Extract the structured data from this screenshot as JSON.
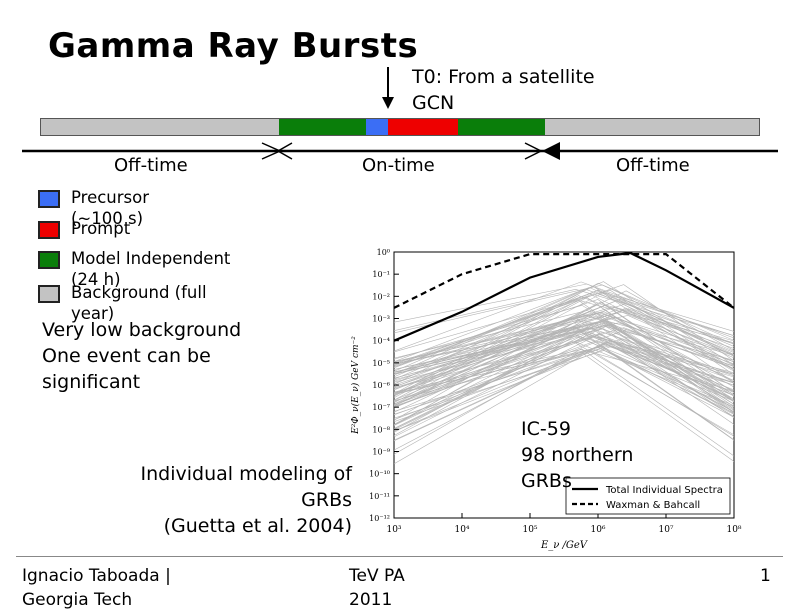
{
  "slide": {
    "title": "Gamma Ray Bursts",
    "t0_note_line1": "T0: From a satellite",
    "t0_note_line2": "GCN"
  },
  "timeline": {
    "segments": [
      {
        "name": "background-left",
        "color": "#c3c3c3"
      },
      {
        "name": "model-independent-left",
        "color": "#0a7e0a"
      },
      {
        "name": "precursor",
        "color": "#3b6ef5"
      },
      {
        "name": "prompt",
        "color": "#ee0000"
      },
      {
        "name": "model-independent-right",
        "color": "#0a7e0a"
      },
      {
        "name": "background-right",
        "color": "#c3c3c3"
      }
    ],
    "off_time_left": "Off-time",
    "on_time": "On-time",
    "off_time_right": "Off-time"
  },
  "legend": [
    {
      "color": "#3b6ef5",
      "line1": "Precursor",
      "line2": "(~100 s)"
    },
    {
      "color": "#ee0000",
      "line1": "Prompt",
      "line2": ""
    },
    {
      "color": "#0a7e0a",
      "line1": "Model Independent",
      "line2": "(24 h)"
    },
    {
      "color": "#c3c3c3",
      "line1": "Background (full",
      "line2": "year)"
    }
  ],
  "body_text": {
    "line1": "Very low background",
    "line2": "One event can be",
    "line3": "significant"
  },
  "caption": {
    "line1": "Individual modeling of",
    "line2": "GRBs",
    "line3": "(Guetta et al. 2004)"
  },
  "ic_note": {
    "line1": "IC-59",
    "line2": "98 northern",
    "line3": "GRBs"
  },
  "footer": {
    "author_line1": "Ignacio Taboada |",
    "author_line2": "Georgia Tech",
    "event_line1": "TeV PA",
    "event_line2": "2011",
    "page": "1"
  },
  "chart_data": {
    "type": "line",
    "xscale": "log",
    "yscale": "log",
    "xlim": [
      1000,
      100000000
    ],
    "ylim": [
      1e-12,
      1
    ],
    "xlabel": "E_ν /GeV",
    "ylabel": "E²Φ_ν(E_ν) GeV cm⁻²",
    "x_tick_labels": [
      "10³",
      "10⁴",
      "10⁵",
      "10⁶",
      "10⁷",
      "10⁸"
    ],
    "y_tick_labels": [
      "10⁰",
      "10⁻¹",
      "10⁻²",
      "10⁻³",
      "10⁻⁴",
      "10⁻⁵",
      "10⁻⁶",
      "10⁻⁷",
      "10⁻⁸",
      "10⁻⁹",
      "10⁻¹⁰",
      "10⁻¹¹",
      "10⁻¹²"
    ],
    "series": [
      {
        "name": "Total Individual Spectra",
        "style": "solid",
        "color": "#000000",
        "x": [
          1000,
          10000,
          100000,
          1000000,
          3000000,
          10000000,
          100000000
        ],
        "y": [
          0.0001,
          0.002,
          0.07,
          0.6,
          0.9,
          0.15,
          0.003
        ]
      },
      {
        "name": "Waxman & Bahcall",
        "style": "dashed",
        "color": "#000000",
        "x": [
          1000,
          10000,
          100000,
          1000000,
          10000000,
          100000000
        ],
        "y": [
          0.003,
          0.1,
          0.8,
          0.8,
          0.8,
          0.003
        ]
      }
    ],
    "individual_spectra": {
      "count": 98,
      "color": "#b4b4b4",
      "peak_x_range": [
        400000,
        3000000
      ],
      "peak_y_range": [
        3e-05,
        0.05
      ]
    },
    "legend_placement": "bottom-right"
  }
}
